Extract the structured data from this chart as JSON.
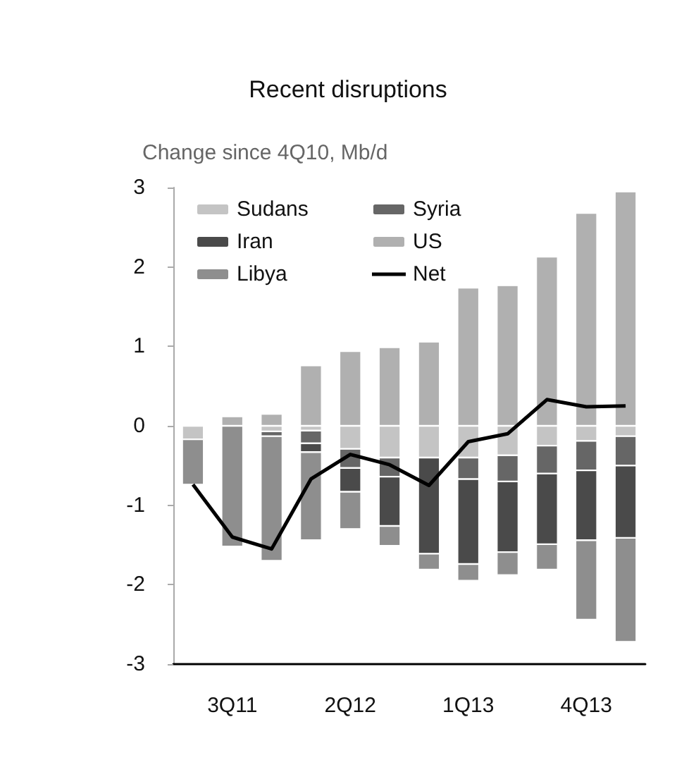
{
  "chart_data": {
    "type": "bar",
    "title": "Recent disruptions",
    "subtitle": "Change since 4Q10, Mb/d",
    "categories": [
      null,
      "3Q11",
      null,
      null,
      "2Q12",
      null,
      null,
      "1Q13",
      null,
      null,
      "4Q13",
      null
    ],
    "stacked": true,
    "series": [
      {
        "name": "Sudans",
        "color": "#c4c4c4",
        "values": [
          -0.17,
          null,
          -0.07,
          -0.06,
          -0.29,
          -0.4,
          -0.4,
          -0.4,
          -0.37,
          -0.25,
          -0.19,
          -0.13
        ]
      },
      {
        "name": "Syria",
        "color": "#666666",
        "values": [
          null,
          null,
          -0.06,
          -0.16,
          -0.24,
          -0.24,
          null,
          -0.27,
          -0.33,
          -0.35,
          -0.37,
          -0.37
        ]
      },
      {
        "name": "Iran",
        "color": "#4a4a4a",
        "values": [
          null,
          null,
          null,
          -0.11,
          -0.3,
          -0.62,
          -1.21,
          -1.07,
          -0.89,
          -0.89,
          -0.88,
          -0.91
        ]
      },
      {
        "name": "US",
        "color": "#b0b0b0",
        "values": [
          null,
          0.12,
          0.15,
          0.76,
          0.94,
          0.99,
          1.06,
          1.74,
          1.77,
          2.13,
          2.68,
          2.95
        ]
      },
      {
        "name": "Libya",
        "color": "#8e8e8e",
        "values": [
          -0.57,
          -1.52,
          -1.57,
          -1.11,
          -0.47,
          -0.25,
          -0.2,
          -0.21,
          -0.29,
          -0.32,
          -1.0,
          -1.31
        ]
      },
      {
        "name": "Net",
        "type": "line",
        "color": "#000000",
        "values": [
          -0.74,
          -1.4,
          -1.55,
          -0.67,
          -0.36,
          -0.49,
          -0.75,
          -0.2,
          -0.1,
          0.33,
          0.24,
          0.25
        ]
      }
    ],
    "ylim": [
      -3,
      3
    ],
    "yticks": [
      -3,
      -2,
      -1,
      0,
      1,
      2,
      3
    ],
    "grid": false,
    "legend": "top left",
    "marker": "none",
    "line_style": "solid"
  }
}
